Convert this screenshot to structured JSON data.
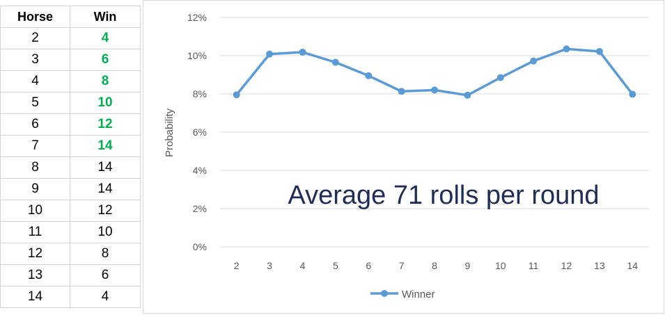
{
  "table": {
    "headers": {
      "horse": "Horse",
      "win": "Win"
    },
    "rows": [
      {
        "horse": "2",
        "win": "4",
        "highlight": true
      },
      {
        "horse": "3",
        "win": "6",
        "highlight": true
      },
      {
        "horse": "4",
        "win": "8",
        "highlight": true
      },
      {
        "horse": "5",
        "win": "10",
        "highlight": true
      },
      {
        "horse": "6",
        "win": "12",
        "highlight": true
      },
      {
        "horse": "7",
        "win": "14",
        "highlight": true
      },
      {
        "horse": "8",
        "win": "14",
        "highlight": false
      },
      {
        "horse": "9",
        "win": "14",
        "highlight": false
      },
      {
        "horse": "10",
        "win": "12",
        "highlight": false
      },
      {
        "horse": "11",
        "win": "10",
        "highlight": false
      },
      {
        "horse": "12",
        "win": "8",
        "highlight": false
      },
      {
        "horse": "13",
        "win": "6",
        "highlight": false
      },
      {
        "horse": "14",
        "win": "4",
        "highlight": false
      }
    ],
    "highlight_color": "#00b050"
  },
  "chart_data": {
    "type": "line",
    "title": "",
    "xlabel": "",
    "ylabel": "Probability",
    "categories": [
      "2",
      "3",
      "4",
      "5",
      "6",
      "7",
      "8",
      "9",
      "10",
      "11",
      "12",
      "13",
      "14"
    ],
    "series": [
      {
        "name": "Winner",
        "color": "#5b9bd5",
        "values": [
          0.0795,
          0.1008,
          0.1018,
          0.0965,
          0.0895,
          0.0813,
          0.082,
          0.0793,
          0.0885,
          0.0972,
          0.1035,
          0.1022,
          0.0798
        ]
      }
    ],
    "ylim": [
      0,
      0.12
    ],
    "yticks": [
      0,
      0.02,
      0.04,
      0.06,
      0.08,
      0.1,
      0.12
    ],
    "ytick_labels": [
      "0%",
      "2%",
      "4%",
      "6%",
      "8%",
      "10%",
      "12%"
    ],
    "grid": true,
    "legend_position": "bottom",
    "annotation": "Average 71 rolls per round"
  }
}
